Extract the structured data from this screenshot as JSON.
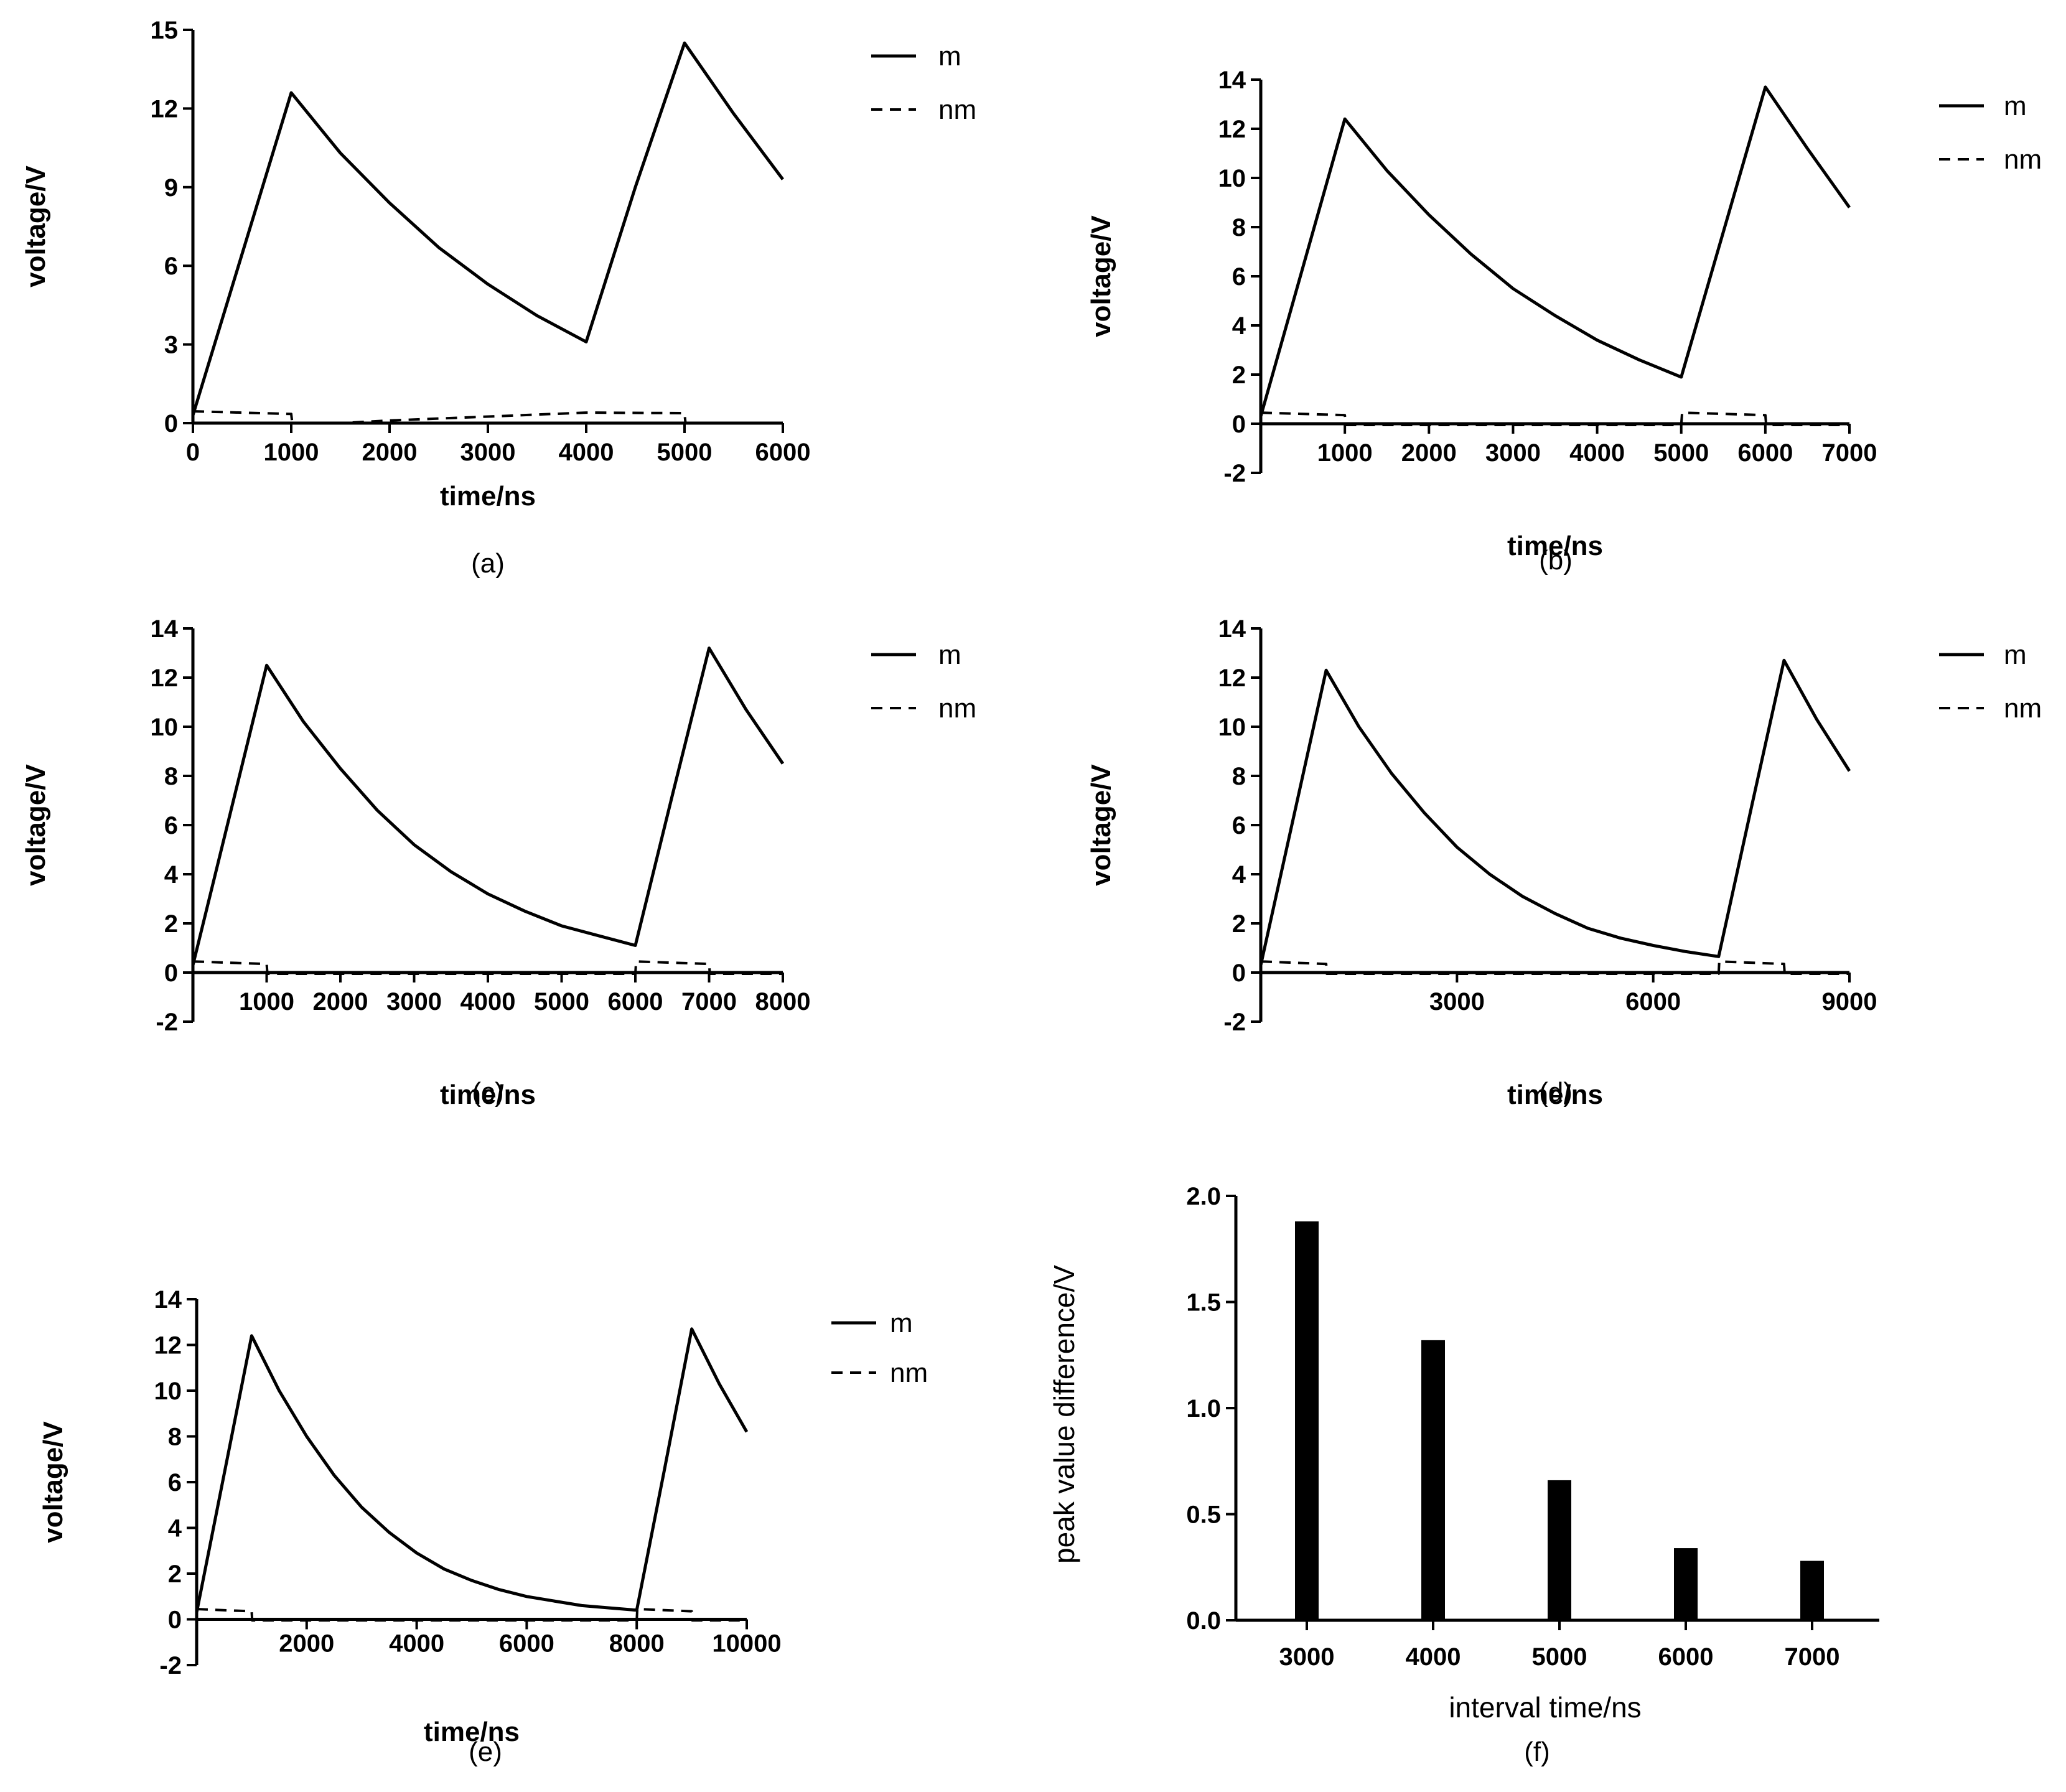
{
  "chart_data": [
    {
      "id": "a",
      "type": "line",
      "caption": "(a)",
      "xlabel": "time/ns",
      "ylabel": "voltage/V",
      "xlim": [
        0,
        6000
      ],
      "ylim": [
        0,
        15
      ],
      "xticks": [
        0,
        1000,
        2000,
        3000,
        4000,
        5000,
        6000
      ],
      "xtick_labels": [
        "0",
        "1000",
        "2000",
        "3000",
        "4000",
        "5000",
        "6000"
      ],
      "yticks": [
        0,
        3,
        6,
        9,
        12,
        15
      ],
      "ytick_labels": [
        "0",
        "3",
        "6",
        "9",
        "12",
        "15"
      ],
      "legend": [
        "m",
        "nm"
      ],
      "series": [
        {
          "name": "m",
          "style": "solid",
          "points": [
            [
              0,
              0.3
            ],
            [
              1000,
              12.6
            ],
            [
              1500,
              10.3
            ],
            [
              2000,
              8.4
            ],
            [
              2500,
              6.7
            ],
            [
              3000,
              5.3
            ],
            [
              3500,
              4.1
            ],
            [
              4000,
              3.1
            ],
            [
              4500,
              9.0
            ],
            [
              5000,
              14.5
            ],
            [
              5500,
              11.8
            ],
            [
              6000,
              9.3
            ]
          ]
        },
        {
          "name": "nm",
          "style": "dashed",
          "points": [
            [
              0,
              0.45
            ],
            [
              1000,
              0.35
            ],
            [
              1010,
              0
            ],
            [
              1500,
              0
            ],
            [
              2000,
              0.1
            ],
            [
              3000,
              0.25
            ],
            [
              4000,
              0.4
            ],
            [
              5000,
              0.38
            ],
            [
              5010,
              0
            ],
            [
              6000,
              0
            ]
          ]
        }
      ]
    },
    {
      "id": "b",
      "type": "line",
      "caption": "(b)",
      "xlabel": "time/ns",
      "ylabel": "voltage/V",
      "xlim": [
        0,
        7000
      ],
      "ylim": [
        -2,
        14
      ],
      "xticks": [
        1000,
        2000,
        3000,
        4000,
        5000,
        6000,
        7000
      ],
      "xtick_labels": [
        "1000",
        "2000",
        "3000",
        "4000",
        "5000",
        "6000",
        "7000"
      ],
      "yticks": [
        -2,
        0,
        2,
        4,
        6,
        8,
        10,
        12,
        14
      ],
      "ytick_labels": [
        "-2",
        "0",
        "2",
        "4",
        "6",
        "8",
        "10",
        "12",
        "14"
      ],
      "legend": [
        "m",
        "nm"
      ],
      "series": [
        {
          "name": "m",
          "style": "solid",
          "points": [
            [
              0,
              0.3
            ],
            [
              1000,
              12.4
            ],
            [
              1500,
              10.3
            ],
            [
              2000,
              8.5
            ],
            [
              2500,
              6.9
            ],
            [
              3000,
              5.5
            ],
            [
              3500,
              4.4
            ],
            [
              4000,
              3.4
            ],
            [
              4500,
              2.6
            ],
            [
              5000,
              1.9
            ],
            [
              5500,
              7.8
            ],
            [
              6000,
              13.7
            ],
            [
              6500,
              11.2
            ],
            [
              7000,
              8.8
            ]
          ]
        },
        {
          "name": "nm",
          "style": "dashed",
          "points": [
            [
              0,
              0.45
            ],
            [
              1000,
              0.35
            ],
            [
              1010,
              -0.05
            ],
            [
              5000,
              -0.05
            ],
            [
              5010,
              0.45
            ],
            [
              6000,
              0.35
            ],
            [
              6010,
              -0.05
            ],
            [
              7000,
              -0.05
            ]
          ]
        }
      ]
    },
    {
      "id": "c",
      "type": "line",
      "caption": "(c)",
      "xlabel": "time/ns",
      "ylabel": "voltage/V",
      "xlim": [
        0,
        8000
      ],
      "ylim": [
        -2,
        14
      ],
      "xticks": [
        1000,
        2000,
        3000,
        4000,
        5000,
        6000,
        7000,
        8000
      ],
      "xtick_labels": [
        "1000",
        "2000",
        "3000",
        "4000",
        "5000",
        "6000",
        "7000",
        "8000"
      ],
      "yticks": [
        -2,
        0,
        2,
        4,
        6,
        8,
        10,
        12,
        14
      ],
      "ytick_labels": [
        "-2",
        "0",
        "2",
        "4",
        "6",
        "8",
        "10",
        "12",
        "14"
      ],
      "legend": [
        "m",
        "nm"
      ],
      "series": [
        {
          "name": "m",
          "style": "solid",
          "points": [
            [
              0,
              0.3
            ],
            [
              1000,
              12.5
            ],
            [
              1500,
              10.2
            ],
            [
              2000,
              8.3
            ],
            [
              2500,
              6.6
            ],
            [
              3000,
              5.2
            ],
            [
              3500,
              4.1
            ],
            [
              4000,
              3.2
            ],
            [
              4500,
              2.5
            ],
            [
              5000,
              1.9
            ],
            [
              5500,
              1.5
            ],
            [
              6000,
              1.1
            ],
            [
              6500,
              7.2
            ],
            [
              7000,
              13.2
            ],
            [
              7500,
              10.7
            ],
            [
              8000,
              8.5
            ]
          ]
        },
        {
          "name": "nm",
          "style": "dashed",
          "points": [
            [
              0,
              0.45
            ],
            [
              1000,
              0.35
            ],
            [
              1010,
              -0.05
            ],
            [
              6000,
              -0.05
            ],
            [
              6010,
              0.45
            ],
            [
              7000,
              0.35
            ],
            [
              7010,
              -0.05
            ],
            [
              8000,
              -0.05
            ]
          ]
        }
      ]
    },
    {
      "id": "d",
      "type": "line",
      "caption": "(d)",
      "xlabel": "time/ns",
      "ylabel": "voltage/V",
      "xlim": [
        0,
        9000
      ],
      "ylim": [
        -2,
        14
      ],
      "xticks": [
        3000,
        6000,
        9000
      ],
      "xtick_labels": [
        "3000",
        "6000",
        "9000"
      ],
      "yticks": [
        -2,
        0,
        2,
        4,
        6,
        8,
        10,
        12,
        14
      ],
      "ytick_labels": [
        "-2",
        "0",
        "2",
        "4",
        "6",
        "8",
        "10",
        "12",
        "14"
      ],
      "legend": [
        "m",
        "nm"
      ],
      "series": [
        {
          "name": "m",
          "style": "solid",
          "points": [
            [
              0,
              0.3
            ],
            [
              1000,
              12.3
            ],
            [
              1500,
              10.0
            ],
            [
              2000,
              8.1
            ],
            [
              2500,
              6.5
            ],
            [
              3000,
              5.1
            ],
            [
              3500,
              4.0
            ],
            [
              4000,
              3.1
            ],
            [
              4500,
              2.4
            ],
            [
              5000,
              1.8
            ],
            [
              5500,
              1.4
            ],
            [
              6000,
              1.1
            ],
            [
              6500,
              0.85
            ],
            [
              7000,
              0.65
            ],
            [
              7500,
              6.7
            ],
            [
              8000,
              12.7
            ],
            [
              8500,
              10.3
            ],
            [
              9000,
              8.2
            ]
          ]
        },
        {
          "name": "nm",
          "style": "dashed",
          "points": [
            [
              0,
              0.45
            ],
            [
              1000,
              0.35
            ],
            [
              1010,
              -0.05
            ],
            [
              7000,
              -0.05
            ],
            [
              7010,
              0.45
            ],
            [
              8000,
              0.35
            ],
            [
              8010,
              -0.05
            ],
            [
              9000,
              -0.05
            ]
          ]
        }
      ]
    },
    {
      "id": "e",
      "type": "line",
      "caption": "(e)",
      "xlabel": "time/ns",
      "ylabel": "voltage/V",
      "xlim": [
        0,
        10000
      ],
      "ylim": [
        -2,
        14
      ],
      "xticks": [
        2000,
        4000,
        6000,
        8000,
        10000
      ],
      "xtick_labels": [
        "2000",
        "4000",
        "6000",
        "8000",
        "10000"
      ],
      "yticks": [
        -2,
        0,
        2,
        4,
        6,
        8,
        10,
        12,
        14
      ],
      "ytick_labels": [
        "-2",
        "0",
        "2",
        "4",
        "6",
        "8",
        "10",
        "12",
        "14"
      ],
      "legend": [
        "m",
        "nm"
      ],
      "series": [
        {
          "name": "m",
          "style": "solid",
          "points": [
            [
              0,
              0.3
            ],
            [
              1000,
              12.4
            ],
            [
              1500,
              10.0
            ],
            [
              2000,
              8.0
            ],
            [
              2500,
              6.3
            ],
            [
              3000,
              4.9
            ],
            [
              3500,
              3.8
            ],
            [
              4000,
              2.9
            ],
            [
              4500,
              2.2
            ],
            [
              5000,
              1.7
            ],
            [
              5500,
              1.3
            ],
            [
              6000,
              1.0
            ],
            [
              6500,
              0.8
            ],
            [
              7000,
              0.6
            ],
            [
              7500,
              0.5
            ],
            [
              8000,
              0.4
            ],
            [
              8500,
              6.5
            ],
            [
              9000,
              12.7
            ],
            [
              9500,
              10.3
            ],
            [
              10000,
              8.2
            ]
          ]
        },
        {
          "name": "nm",
          "style": "dashed",
          "points": [
            [
              0,
              0.45
            ],
            [
              1000,
              0.35
            ],
            [
              1010,
              -0.05
            ],
            [
              8000,
              -0.05
            ],
            [
              8010,
              0.45
            ],
            [
              9000,
              0.35
            ],
            [
              9010,
              -0.05
            ],
            [
              10000,
              -0.05
            ]
          ]
        }
      ]
    },
    {
      "id": "f",
      "type": "bar",
      "caption": "(f)",
      "xlabel": "interval time/ns",
      "ylabel": "peak value difference/V",
      "categories": [
        "3000",
        "4000",
        "5000",
        "6000",
        "7000"
      ],
      "values": [
        1.88,
        1.32,
        0.66,
        0.34,
        0.28
      ],
      "ylim": [
        0,
        2.0
      ],
      "yticks": [
        0,
        0.5,
        1.0,
        1.5,
        2.0
      ],
      "ytick_labels": [
        "0.0",
        "0.5",
        "1.0",
        "1.5",
        "2.0"
      ]
    }
  ]
}
